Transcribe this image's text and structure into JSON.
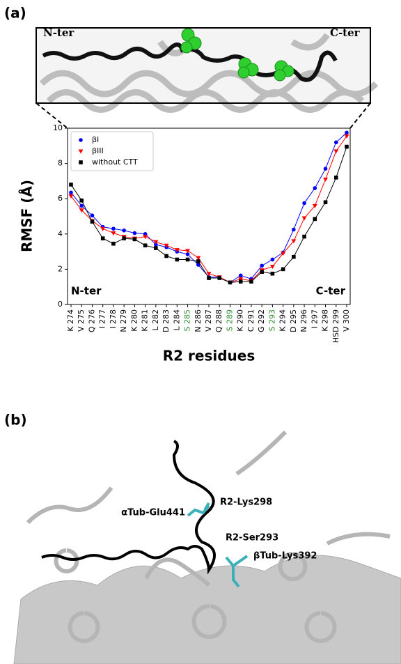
{
  "panel_a": {
    "label": "(a)",
    "inset_labels": [
      "N-ter",
      "C-ter"
    ]
  },
  "chart_data": {
    "type": "line",
    "y_label": "RMSF (Å)",
    "x_label": "R2 residues",
    "categories": [
      "K 274",
      "V 275",
      "Q 276",
      "I 277",
      "I 278",
      "N 279",
      "K 280",
      "K 281",
      "L 282",
      "D 283",
      "L 284",
      "S 285",
      "N 286",
      "V 287",
      "Q 288",
      "S 289",
      "K 290",
      "C 291",
      "G 292",
      "S 293",
      "K 294",
      "D 295",
      "N 296",
      "I 297",
      "K 298",
      "HSD 299",
      "V 300"
    ],
    "category_colors": [
      "#000",
      "#000",
      "#000",
      "#000",
      "#000",
      "#000",
      "#000",
      "#000",
      "#000",
      "#000",
      "#000",
      "#2e8b2e",
      "#000",
      "#000",
      "#000",
      "#2e8b2e",
      "#000",
      "#000",
      "#000",
      "#2e8b2e",
      "#000",
      "#000",
      "#000",
      "#000",
      "#000",
      "#000",
      "#000"
    ],
    "series": [
      {
        "name": "βI",
        "color": "#0000ff",
        "marker": "circle",
        "values": [
          6.35,
          5.6,
          5.05,
          4.4,
          4.3,
          4.2,
          4.05,
          4.0,
          3.4,
          3.25,
          3.0,
          2.85,
          2.25,
          1.55,
          1.55,
          1.25,
          1.65,
          1.45,
          2.2,
          2.55,
          2.95,
          4.25,
          5.75,
          6.6,
          7.7,
          9.2,
          9.75
        ]
      },
      {
        "name": "βIII",
        "color": "#ff0000",
        "marker": "triangle-down",
        "values": [
          6.15,
          5.35,
          4.75,
          4.3,
          4.05,
          3.85,
          3.75,
          3.85,
          3.55,
          3.35,
          3.1,
          3.05,
          2.65,
          1.75,
          1.55,
          1.25,
          1.45,
          1.35,
          1.95,
          2.15,
          2.9,
          3.6,
          4.9,
          5.6,
          7.1,
          8.7,
          9.55
        ]
      },
      {
        "name": "without CTT",
        "color": "#000000",
        "marker": "square",
        "values": [
          6.8,
          5.9,
          4.7,
          3.75,
          3.45,
          3.75,
          3.7,
          3.35,
          3.2,
          2.75,
          2.55,
          2.55,
          2.45,
          1.5,
          1.5,
          1.25,
          1.3,
          1.3,
          1.85,
          1.75,
          2.0,
          2.7,
          3.85,
          4.85,
          5.8,
          7.2,
          8.95
        ]
      }
    ],
    "ylim": [
      0,
      10
    ],
    "yticks": [
      0,
      2,
      4,
      6,
      8,
      10
    ],
    "legend": "upper left",
    "annotations": [
      "N-ter",
      "C-ter"
    ]
  },
  "panel_b": {
    "label": "(b)",
    "annotations": [
      "αTub-Glu441",
      "R2-Lys298",
      "R2-Ser293",
      "βTub-Lys392"
    ]
  }
}
